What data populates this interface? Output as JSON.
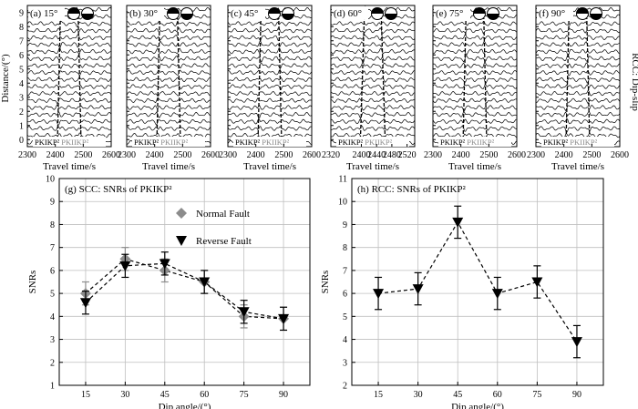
{
  "figure": {
    "side_label": "RCC: Dip-slip",
    "top_ylabel": "Distance/(°)",
    "top_xlabel": "Travel time/s"
  },
  "colors": {
    "normal": "#8c8c8c",
    "reverse": "#000000",
    "trace": "#000000",
    "grid": "#bfbfbf"
  },
  "chart_data": [
    {
      "type": "line",
      "id": "waveforms",
      "panels": [
        {
          "label": "(a) 15°",
          "dip": 15,
          "x_ticks": [
            2300,
            2400,
            2500,
            2600
          ],
          "xlim": [
            2300,
            2600
          ],
          "phase1": "PKIKP²",
          "phase2": "PKIIKP²"
        },
        {
          "label": "(b) 30°",
          "dip": 30,
          "x_ticks": [
            2300,
            2400,
            2500,
            2600
          ],
          "xlim": [
            2300,
            2600
          ],
          "phase1": "PKIKP²",
          "phase2": "PKIIKP²"
        },
        {
          "label": "(c) 45°",
          "dip": 45,
          "x_ticks": [
            2300,
            2400,
            2500,
            2600
          ],
          "xlim": [
            2300,
            2600
          ],
          "phase1": "PKIKP²",
          "phase2": "PKIIKP²"
        },
        {
          "label": "(d) 60°",
          "dip": 60,
          "x_ticks": [
            2320,
            2400,
            2440,
            2480,
            2520
          ],
          "xlim": [
            2320,
            2540
          ],
          "phase1": "PKIKP²",
          "phase2": "PKIIKP²"
        },
        {
          "label": "(e) 75°",
          "dip": 75,
          "x_ticks": [
            2300,
            2400,
            2500,
            2600
          ],
          "xlim": [
            2300,
            2600
          ],
          "phase1": "PKIKP²",
          "phase2": "PKIIKP²"
        },
        {
          "label": "(f) 90°",
          "dip": 90,
          "x_ticks": [
            2300,
            2400,
            2500,
            2600
          ],
          "xlim": [
            2300,
            2600
          ],
          "phase1": "PKIKP²",
          "phase2": "PKIIKP²"
        }
      ],
      "y_ticks": [
        0,
        1,
        2,
        3,
        4,
        5,
        6,
        7,
        8,
        9
      ],
      "ylim": [
        -0.5,
        9.5
      ],
      "traces_per_panel": 20
    },
    {
      "type": "line",
      "id": "scc",
      "title": "(g) SCC: SNRs of PKIKP²",
      "xlabel": "Dip angle/(°)",
      "ylabel": "SNRs",
      "x": [
        15,
        30,
        45,
        60,
        75,
        90
      ],
      "xlim": [
        5,
        100
      ],
      "ylim": [
        1,
        10
      ],
      "y_ticks": [
        1,
        2,
        3,
        4,
        5,
        6,
        7,
        8,
        9,
        10
      ],
      "series": [
        {
          "name": "Normal Fault",
          "marker": "diamond",
          "values": [
            5.0,
            6.5,
            6.0,
            5.5,
            4.0,
            3.9
          ],
          "err": [
            0.5,
            0.5,
            0.5,
            0.5,
            0.5,
            0.5
          ]
        },
        {
          "name": "Reverse Fault",
          "marker": "triangle-down",
          "values": [
            4.6,
            6.2,
            6.3,
            5.5,
            4.2,
            3.9
          ],
          "err": [
            0.5,
            0.5,
            0.5,
            0.5,
            0.5,
            0.5
          ]
        }
      ],
      "legend": "top-right"
    },
    {
      "type": "line",
      "id": "rcc",
      "title": "(h) RCC: SNRs of PKIKP²",
      "xlabel": "Dip angle/(°)",
      "ylabel": "SNRs",
      "x": [
        15,
        30,
        45,
        60,
        75,
        90
      ],
      "xlim": [
        5,
        100
      ],
      "ylim": [
        2,
        11
      ],
      "y_ticks": [
        2,
        3,
        4,
        5,
        6,
        7,
        8,
        9,
        10,
        11
      ],
      "series": [
        {
          "name": "Reverse Fault",
          "marker": "triangle-down",
          "values": [
            6.0,
            6.2,
            9.1,
            6.0,
            6.5,
            3.9
          ],
          "err": [
            0.7,
            0.7,
            0.7,
            0.7,
            0.7,
            0.7
          ]
        }
      ]
    }
  ]
}
